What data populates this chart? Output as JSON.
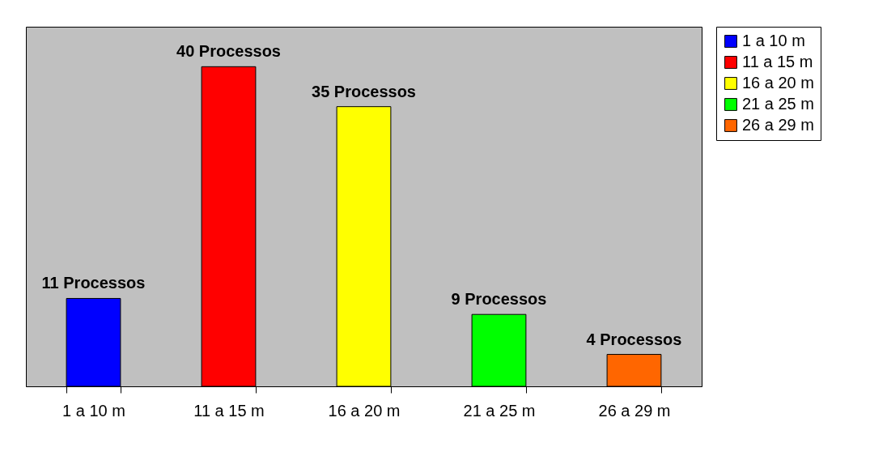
{
  "chart_data": {
    "type": "bar",
    "categories": [
      "1 a 10 m",
      "11 a 15 m",
      "16 a 20 m",
      "21 a 25 m",
      "26 a 29 m"
    ],
    "series": [
      {
        "name": "1 a 10 m",
        "color": "#0000ff",
        "values": [
          11,
          null,
          null,
          null,
          null
        ],
        "value_labels": [
          "11 Processos",
          null,
          null,
          null,
          null
        ]
      },
      {
        "name": "11 a 15 m",
        "color": "#ff0000",
        "values": [
          null,
          40,
          null,
          null,
          null
        ],
        "value_labels": [
          null,
          "40 Processos",
          null,
          null,
          null
        ]
      },
      {
        "name": "16 a 20 m",
        "color": "#ffff00",
        "values": [
          null,
          null,
          35,
          null,
          null
        ],
        "value_labels": [
          null,
          null,
          "35 Processos",
          null,
          null
        ]
      },
      {
        "name": "21 a 25 m",
        "color": "#00ff00",
        "values": [
          null,
          null,
          null,
          9,
          null
        ],
        "value_labels": [
          null,
          null,
          null,
          "9 Processos",
          null
        ]
      },
      {
        "name": "26 a 29 m",
        "color": "#ff6600",
        "values": [
          null,
          null,
          null,
          null,
          4
        ],
        "value_labels": [
          null,
          null,
          null,
          null,
          "4 Processos"
        ]
      }
    ],
    "ylim": [
      0,
      45
    ],
    "legend": "right",
    "grid": false
  }
}
